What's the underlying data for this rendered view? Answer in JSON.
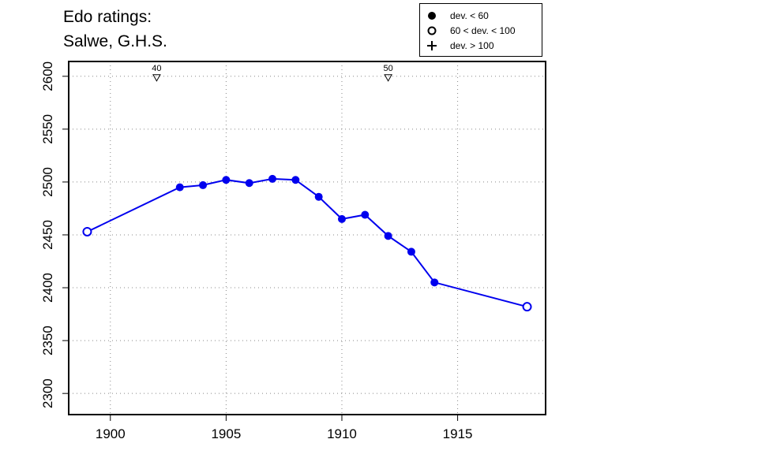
{
  "title_lines": [
    "Edo ratings:",
    "Salwe, G.H.S."
  ],
  "legend": {
    "items": [
      {
        "label": "dev. < 60",
        "symbol": "filled-circle"
      },
      {
        "label": "60 < dev. < 100",
        "symbol": "open-circle"
      },
      {
        "label": "dev. > 100",
        "symbol": "plus"
      }
    ]
  },
  "colors": {
    "series": "#0000ee",
    "axis": "#000000",
    "grid": "#888888"
  },
  "chart_data": {
    "type": "line",
    "xlim": [
      1898.2,
      1918.8
    ],
    "ylim": [
      2280,
      2614
    ],
    "x_ticks": [
      1900,
      1905,
      1910,
      1915
    ],
    "y_ticks": [
      2300,
      2350,
      2400,
      2450,
      2500,
      2550,
      2600
    ],
    "grid": true,
    "series": [
      {
        "points": [
          {
            "x": 1899,
            "y": 2453,
            "dev": "60-100"
          },
          {
            "x": 1903,
            "y": 2495,
            "dev": "<60"
          },
          {
            "x": 1904,
            "y": 2497,
            "dev": "<60"
          },
          {
            "x": 1905,
            "y": 2502,
            "dev": "<60"
          },
          {
            "x": 1906,
            "y": 2499,
            "dev": "<60"
          },
          {
            "x": 1907,
            "y": 2503,
            "dev": "<60"
          },
          {
            "x": 1908,
            "y": 2502,
            "dev": "<60"
          },
          {
            "x": 1909,
            "y": 2486,
            "dev": "<60"
          },
          {
            "x": 1910,
            "y": 2465,
            "dev": "<60"
          },
          {
            "x": 1911,
            "y": 2469,
            "dev": "<60"
          },
          {
            "x": 1912,
            "y": 2449,
            "dev": "<60"
          },
          {
            "x": 1913,
            "y": 2434,
            "dev": "<60"
          },
          {
            "x": 1914,
            "y": 2405,
            "dev": "<60"
          },
          {
            "x": 1918,
            "y": 2382,
            "dev": "60-100"
          }
        ]
      }
    ],
    "annotations": [
      {
        "x": 1902,
        "y": 2600,
        "label": "40",
        "marker": "open-triangle-down"
      },
      {
        "x": 1912,
        "y": 2600,
        "label": "50",
        "marker": "open-triangle-down"
      }
    ]
  }
}
